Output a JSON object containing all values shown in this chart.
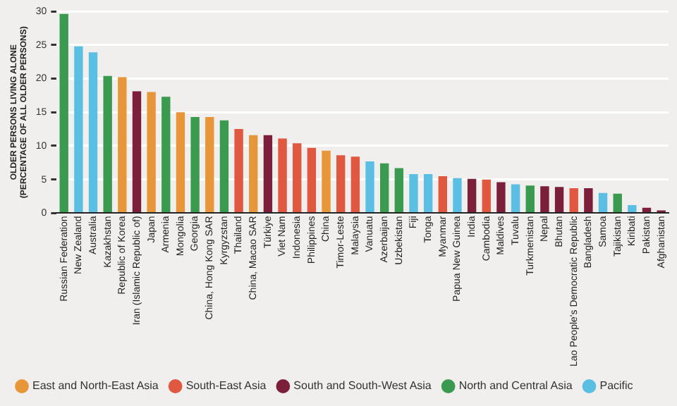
{
  "chart_data": {
    "type": "bar",
    "ylabel": "OLDER PERSONS LIVING ALONE\n(PERCENTAGE OF ALL OLDER PERSONS)",
    "categories": [
      "Russian Federation",
      "New Zealand",
      "Australia",
      "Kazakhstan",
      "Republic of Korea",
      "Iran (Islamic Republic of)",
      "Japan",
      "Armenia",
      "Mongolia",
      "Georgia",
      "China, Hong Kong SAR",
      "Kyrgyzstan",
      "Thailand",
      "China, Macao SAR",
      "Türkiye",
      "Viet Nam",
      "Indonesia",
      "Philippines",
      "China",
      "Timor-Leste",
      "Malaysia",
      "Vanuatu",
      "Azerbaijan",
      "Uzbekistan",
      "Fiji",
      "Tonga",
      "Myanmar",
      "Papua New Guinea",
      "India",
      "Cambodia",
      "Maldives",
      "Tuvalu",
      "Turkmenistan",
      "Nepal",
      "Bhutan",
      "Lao People's Democratic Republic",
      "Bangladesh",
      "Samoa",
      "Tajikistan",
      "Kiribati",
      "Pakistan",
      "Afghanistan"
    ],
    "series": [
      {
        "name": "East and North-East Asia",
        "color": "#e8963a",
        "values": [
          null,
          null,
          null,
          null,
          20.2,
          null,
          18.0,
          null,
          15.0,
          null,
          14.3,
          null,
          null,
          11.6,
          null,
          null,
          null,
          null,
          9.3,
          null,
          null,
          null,
          null,
          null,
          null,
          null,
          null,
          null,
          null,
          null,
          null,
          null,
          null,
          null,
          null,
          null,
          null,
          null,
          null,
          null,
          null,
          null
        ]
      },
      {
        "name": "South-East Asia",
        "color": "#e0583f",
        "values": [
          null,
          null,
          null,
          null,
          null,
          null,
          null,
          null,
          null,
          null,
          null,
          null,
          12.5,
          null,
          null,
          11.1,
          10.4,
          9.7,
          null,
          8.6,
          8.4,
          null,
          null,
          null,
          null,
          null,
          5.5,
          null,
          null,
          5.0,
          null,
          null,
          null,
          null,
          null,
          3.7,
          null,
          null,
          null,
          null,
          null,
          null
        ]
      },
      {
        "name": "South and South-West Asia",
        "color": "#7b1f3a",
        "values": [
          null,
          null,
          null,
          null,
          null,
          18.1,
          null,
          null,
          null,
          null,
          null,
          null,
          null,
          null,
          11.6,
          null,
          null,
          null,
          null,
          null,
          null,
          null,
          null,
          null,
          null,
          null,
          null,
          null,
          5.1,
          null,
          4.6,
          null,
          null,
          4.0,
          3.9,
          null,
          3.7,
          null,
          null,
          null,
          0.8,
          0.4
        ]
      },
      {
        "name": "North and Central Asia",
        "color": "#3a9a4f",
        "values": [
          29.6,
          null,
          null,
          20.4,
          null,
          null,
          null,
          17.3,
          null,
          14.3,
          null,
          13.8,
          null,
          null,
          null,
          null,
          null,
          null,
          null,
          null,
          null,
          null,
          7.4,
          6.7,
          null,
          null,
          null,
          null,
          null,
          null,
          null,
          null,
          4.1,
          null,
          null,
          null,
          null,
          null,
          2.9,
          null,
          null,
          null
        ]
      },
      {
        "name": "Pacific",
        "color": "#5bbfe3",
        "values": [
          null,
          24.8,
          23.9,
          null,
          null,
          null,
          null,
          null,
          null,
          null,
          null,
          null,
          null,
          null,
          null,
          null,
          null,
          null,
          null,
          null,
          null,
          7.7,
          null,
          null,
          5.8,
          5.8,
          null,
          5.2,
          null,
          null,
          null,
          4.3,
          null,
          null,
          null,
          null,
          null,
          3.0,
          null,
          1.2,
          null,
          null
        ]
      }
    ],
    "ylim": [
      0,
      30
    ],
    "yticks": [
      0,
      5,
      10,
      15,
      20,
      25,
      30
    ],
    "grid": "y",
    "legend": "bottom"
  }
}
